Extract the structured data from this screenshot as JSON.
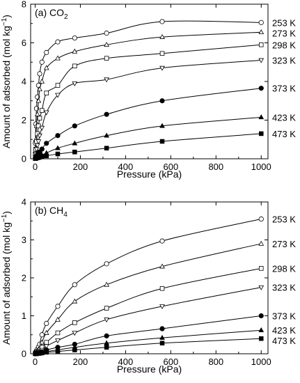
{
  "chart_data": [
    {
      "type": "scatter",
      "panel_label": "(a) CO",
      "panel_label_sub": "2",
      "xlabel": "Pressure (kPa)",
      "ylabel": "Amount of adsorbed (mol kg",
      "ylabel_sup": "−1",
      "ylabel_tail": ")",
      "xlim": [
        -20,
        1030
      ],
      "ylim": [
        0,
        8
      ],
      "xticks": [
        0,
        200,
        400,
        600,
        800,
        1000
      ],
      "yticks": [
        0,
        2,
        4,
        6,
        8
      ],
      "fit_lines": true,
      "series": [
        {
          "name": "253 K",
          "marker": "open-circle",
          "x": [
            1,
            3,
            6,
            10,
            15,
            20,
            30,
            50,
            100,
            175,
            316,
            562,
            1000
          ],
          "y": [
            0.8,
            1.8,
            2.6,
            3.2,
            3.8,
            4.4,
            5.0,
            5.5,
            6.05,
            6.25,
            6.5,
            7.1,
            7.05
          ]
        },
        {
          "name": "273 K",
          "marker": "open-triangle-up",
          "x": [
            1,
            3,
            6,
            10,
            15,
            20,
            30,
            50,
            100,
            175,
            316,
            562,
            1000
          ],
          "y": [
            0.4,
            1.0,
            1.7,
            2.3,
            3.0,
            3.6,
            4.0,
            4.7,
            5.2,
            5.55,
            5.9,
            6.3,
            6.55
          ]
        },
        {
          "name": "298 K",
          "marker": "open-square",
          "x": [
            1,
            3,
            6,
            10,
            15,
            20,
            30,
            50,
            100,
            175,
            316,
            562,
            1000
          ],
          "y": [
            0.2,
            0.5,
            0.9,
            1.3,
            1.7,
            2.1,
            2.5,
            3.4,
            3.8,
            4.8,
            5.2,
            5.45,
            5.9
          ]
        },
        {
          "name": "323 K",
          "marker": "open-triangle-down",
          "x": [
            1,
            3,
            6,
            10,
            15,
            20,
            30,
            50,
            100,
            175,
            316,
            562,
            1000
          ],
          "y": [
            0.1,
            0.25,
            0.5,
            0.7,
            0.9,
            1.2,
            1.6,
            2.4,
            3.3,
            3.9,
            4.1,
            4.7,
            5.1
          ]
        },
        {
          "name": "373 K",
          "marker": "filled-circle",
          "x": [
            1,
            3,
            6,
            10,
            15,
            20,
            30,
            50,
            100,
            175,
            316,
            562,
            1000
          ],
          "y": [
            0.05,
            0.1,
            0.15,
            0.2,
            0.3,
            0.35,
            0.5,
            0.8,
            1.2,
            1.7,
            2.3,
            3.0,
            3.65
          ]
        },
        {
          "name": "423 K",
          "marker": "filled-triangle-up",
          "x": [
            1,
            3,
            6,
            10,
            15,
            20,
            30,
            50,
            100,
            175,
            316,
            562,
            1000
          ],
          "y": [
            0.02,
            0.05,
            0.08,
            0.1,
            0.12,
            0.15,
            0.2,
            0.3,
            0.55,
            0.8,
            1.2,
            1.7,
            2.15
          ]
        },
        {
          "name": "473 K",
          "marker": "filled-square",
          "x": [
            1,
            3,
            6,
            10,
            15,
            20,
            30,
            50,
            100,
            175,
            316,
            562,
            1000
          ],
          "y": [
            0.01,
            0.02,
            0.04,
            0.05,
            0.06,
            0.08,
            0.1,
            0.15,
            0.25,
            0.35,
            0.55,
            0.9,
            1.3
          ]
        }
      ]
    },
    {
      "type": "scatter",
      "panel_label": "(b) CH",
      "panel_label_sub": "4",
      "xlabel": "Pressure (kPa)",
      "ylabel": "Amount of adsorbed (mol kg",
      "ylabel_sup": "−1",
      "ylabel_tail": ")",
      "xlim": [
        -20,
        1030
      ],
      "ylim": [
        0,
        4
      ],
      "xticks": [
        0,
        200,
        400,
        600,
        800,
        1000
      ],
      "yticks": [
        0,
        1,
        2,
        3,
        4
      ],
      "fit_lines": true,
      "series": [
        {
          "name": "253 K",
          "marker": "open-circle",
          "x": [
            1,
            3,
            6,
            10,
            15,
            20,
            30,
            50,
            100,
            175,
            316,
            562,
            1000
          ],
          "y": [
            0.02,
            0.05,
            0.08,
            0.12,
            0.18,
            0.25,
            0.5,
            0.8,
            1.25,
            1.82,
            2.37,
            2.97,
            3.55
          ]
        },
        {
          "name": "273 K",
          "marker": "open-triangle-up",
          "x": [
            1,
            3,
            6,
            10,
            15,
            20,
            30,
            50,
            100,
            175,
            316,
            562,
            1000
          ],
          "y": [
            0.01,
            0.03,
            0.05,
            0.08,
            0.11,
            0.15,
            0.3,
            0.55,
            0.9,
            1.38,
            1.82,
            2.3,
            2.9
          ]
        },
        {
          "name": "298 K",
          "marker": "open-square",
          "x": [
            1,
            3,
            6,
            10,
            15,
            20,
            30,
            50,
            100,
            175,
            316,
            562,
            1000
          ],
          "y": [
            0.01,
            0.02,
            0.04,
            0.05,
            0.07,
            0.1,
            0.17,
            0.3,
            0.55,
            0.82,
            1.2,
            1.72,
            2.25
          ]
        },
        {
          "name": "323 K",
          "marker": "open-triangle-down",
          "x": [
            1,
            3,
            6,
            10,
            15,
            20,
            30,
            50,
            100,
            175,
            316,
            562,
            1000
          ],
          "y": [
            0.0,
            0.01,
            0.02,
            0.03,
            0.05,
            0.07,
            0.1,
            0.2,
            0.35,
            0.55,
            0.9,
            1.25,
            1.75
          ]
        },
        {
          "name": "373 K",
          "marker": "filled-circle",
          "x": [
            1,
            3,
            6,
            10,
            15,
            20,
            30,
            50,
            100,
            175,
            316,
            562,
            1000
          ],
          "y": [
            0.0,
            0.01,
            0.01,
            0.02,
            0.03,
            0.04,
            0.05,
            0.1,
            0.17,
            0.25,
            0.47,
            0.66,
            1.0
          ]
        },
        {
          "name": "423 K",
          "marker": "filled-triangle-up",
          "x": [
            1,
            3,
            6,
            10,
            15,
            20,
            30,
            50,
            100,
            175,
            316,
            562,
            1000
          ],
          "y": [
            0.0,
            0.0,
            0.01,
            0.01,
            0.02,
            0.02,
            0.03,
            0.06,
            0.1,
            0.17,
            0.28,
            0.42,
            0.62
          ]
        },
        {
          "name": "473 K",
          "marker": "filled-square",
          "x": [
            1,
            3,
            6,
            10,
            15,
            20,
            30,
            50,
            100,
            175,
            316,
            562,
            1000
          ],
          "y": [
            0.0,
            0.0,
            0.0,
            0.01,
            0.01,
            0.01,
            0.02,
            0.04,
            0.06,
            0.1,
            0.17,
            0.28,
            0.4
          ]
        }
      ]
    }
  ]
}
